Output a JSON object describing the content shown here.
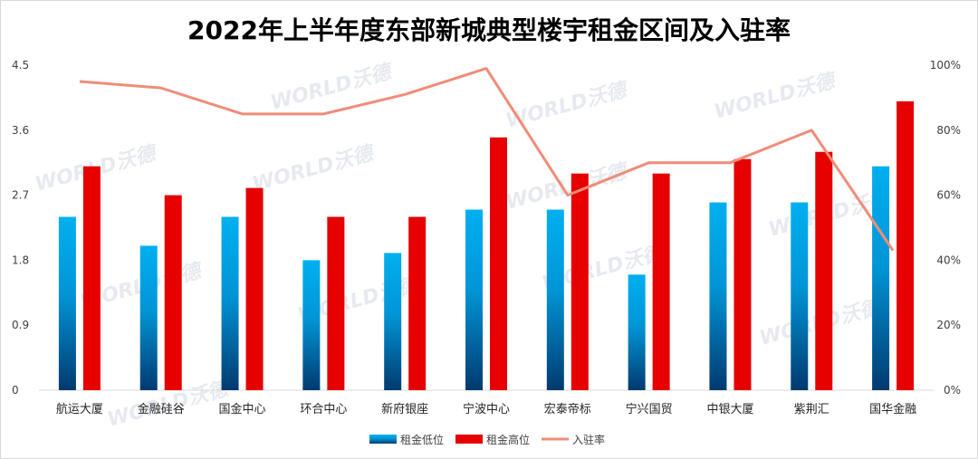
{
  "chart_data": {
    "type": "bar",
    "title": "2022年上半年度东部新城典型楼宇租金区间及入驻率",
    "categories": [
      "航运大厦",
      "金融硅谷",
      "国金中心",
      "环合中心",
      "新府银座",
      "宁波中心",
      "宏泰帝标",
      "宁兴国贸",
      "中银大厦",
      "紫荆汇",
      "国华金融"
    ],
    "series": [
      {
        "name": "租金低位",
        "type": "bar",
        "axis": "left",
        "color": "#00b0f0",
        "values": [
          2.4,
          2.0,
          2.4,
          1.8,
          1.9,
          2.5,
          2.5,
          1.6,
          2.6,
          2.6,
          3.1
        ]
      },
      {
        "name": "租金高位",
        "type": "bar",
        "axis": "left",
        "color": "#e60000",
        "values": [
          3.1,
          2.7,
          2.8,
          2.4,
          2.4,
          3.5,
          3.0,
          3.0,
          3.2,
          3.3,
          4.0
        ]
      },
      {
        "name": "入驻率",
        "type": "line",
        "axis": "right",
        "color": "#f08c78",
        "values": [
          95,
          93,
          85,
          85,
          91,
          99,
          60,
          70,
          70,
          80,
          43
        ]
      }
    ],
    "y_left": {
      "min": 0,
      "max": 4.5,
      "ticks": [
        "0",
        "0.9",
        "1.8",
        "2.7",
        "3.6",
        "4.5"
      ]
    },
    "y_right": {
      "min": 0,
      "max": 100,
      "ticks": [
        "0%",
        "20%",
        "40%",
        "60%",
        "80%",
        "100%"
      ]
    },
    "grid": false,
    "legend_position": "bottom"
  },
  "watermark": "WORLD沃德",
  "colors": {
    "low_top": "#00b0f0",
    "low_bottom": "#003a70",
    "high": "#e60000",
    "line": "#f08c78",
    "axis": "#d9d9d9"
  }
}
